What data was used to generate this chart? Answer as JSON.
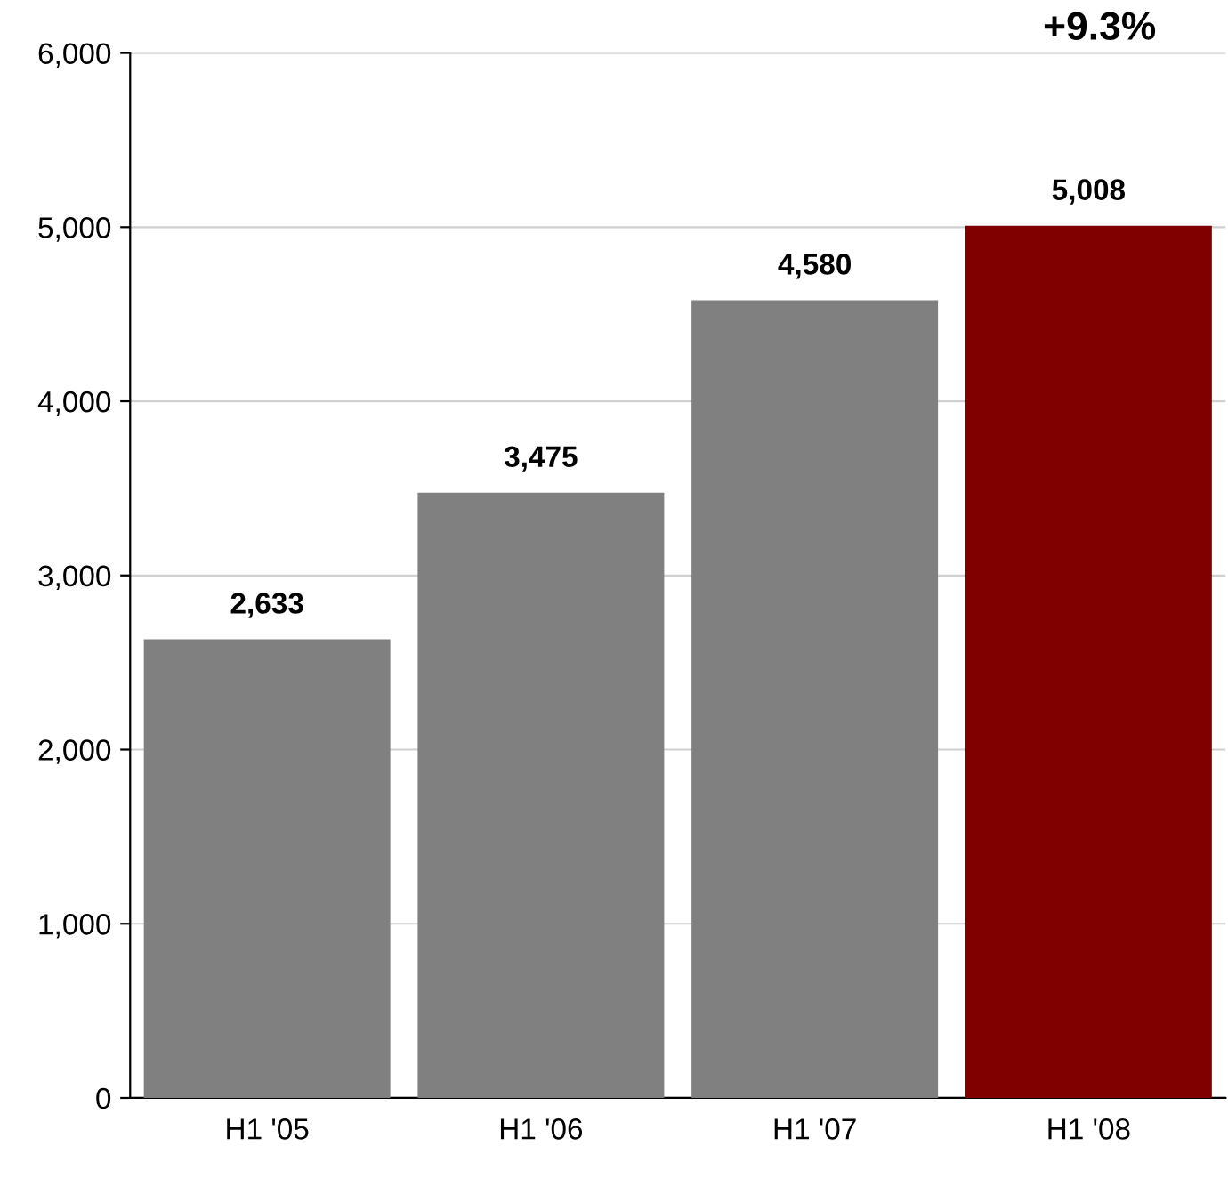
{
  "chart_data": {
    "type": "bar",
    "categories": [
      "H1 '05",
      "H1 '06",
      "H1 '07",
      "H1 '08"
    ],
    "values": [
      2633,
      3475,
      4580,
      5008
    ],
    "colors": [
      "#808080",
      "#808080",
      "#808080",
      "#800000"
    ],
    "ylim": [
      0,
      6000
    ],
    "yticks": [
      {
        "value": 0,
        "label": "0"
      },
      {
        "value": 1000,
        "label": "1,000"
      },
      {
        "value": 2000,
        "label": "2,000"
      },
      {
        "value": 3000,
        "label": "3,000"
      },
      {
        "value": 4000,
        "label": "4,000"
      },
      {
        "value": 5000,
        "label": "5,000"
      },
      {
        "value": 6000,
        "label": "6,000"
      }
    ],
    "value_labels": [
      "2,633",
      "3,475",
      "4,580",
      "5,008"
    ],
    "annotations": [
      "+9.3%"
    ],
    "grid": "y",
    "legend": false
  }
}
